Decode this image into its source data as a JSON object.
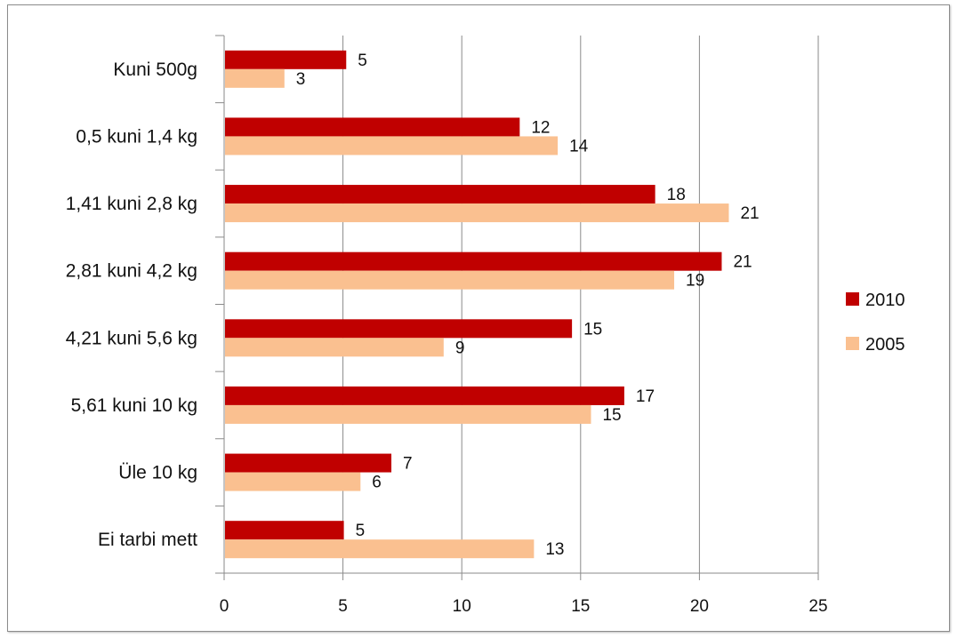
{
  "chart_data": {
    "type": "bar",
    "orientation": "horizontal",
    "categories": [
      "Kuni 500g",
      "0,5 kuni 1,4 kg",
      "1,41 kuni 2,8 kg",
      "2,81 kuni 4,2 kg",
      "4,21 kuni 5,6 kg",
      "5,61 kuni 10 kg",
      "Üle 10 kg",
      "Ei tarbi mett"
    ],
    "series": [
      {
        "name": "2010",
        "color": "#c00000",
        "values": [
          5,
          12,
          18,
          21,
          15,
          17,
          7,
          5
        ],
        "bar_values": [
          5.1,
          12.4,
          18.1,
          20.9,
          14.6,
          16.8,
          7.0,
          5.0
        ]
      },
      {
        "name": "2005",
        "color": "#fac090",
        "values": [
          3,
          14,
          21,
          19,
          9,
          15,
          6,
          13
        ],
        "bar_values": [
          2.5,
          14.0,
          21.2,
          18.9,
          9.2,
          15.4,
          5.7,
          13.0
        ]
      }
    ],
    "xlim": [
      0,
      25
    ],
    "xticks": [
      "0",
      "5",
      "10",
      "15",
      "20",
      "25"
    ],
    "grid": "vertical",
    "legend_position": "right",
    "title": "",
    "xlabel": "",
    "ylabel": ""
  }
}
